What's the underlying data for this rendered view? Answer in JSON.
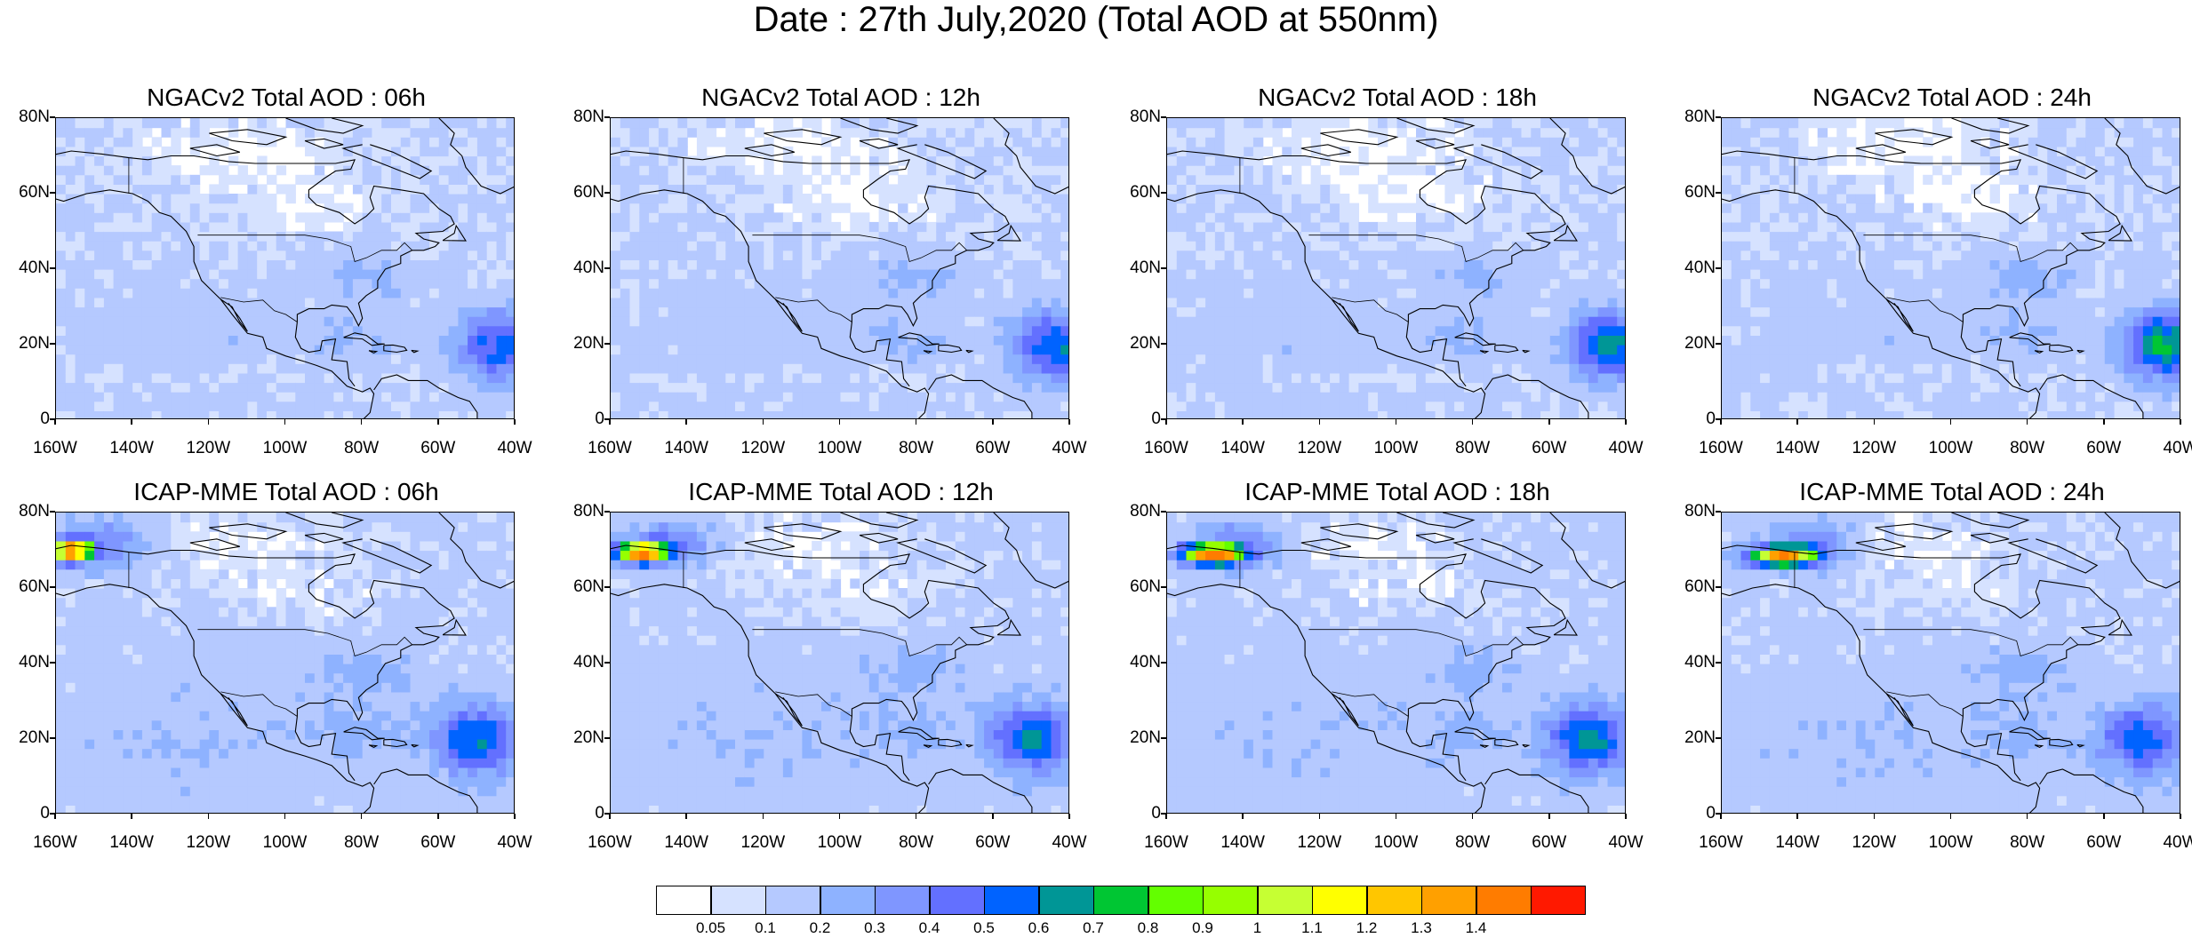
{
  "title": "Date : 27th July,2020 (Total AOD at 550nm)",
  "panels": [
    {
      "title": "NGACv2 Total AOD : 06h",
      "model": "NGACv2",
      "lead": "06h",
      "plume_intensity": 0.0,
      "dust_intensity": 0.45
    },
    {
      "title": "NGACv2 Total AOD : 12h",
      "model": "NGACv2",
      "lead": "12h",
      "plume_intensity": 0.0,
      "dust_intensity": 0.5
    },
    {
      "title": "NGACv2 Total AOD : 18h",
      "model": "NGACv2",
      "lead": "18h",
      "plume_intensity": 0.0,
      "dust_intensity": 0.55
    },
    {
      "title": "NGACv2 Total AOD : 24h",
      "model": "NGACv2",
      "lead": "24h",
      "plume_intensity": 0.0,
      "dust_intensity": 0.6
    },
    {
      "title": "ICAP-MME Total AOD : 06h",
      "model": "ICAP-MME",
      "lead": "06h",
      "plume_intensity": 1.4,
      "dust_intensity": 0.5
    },
    {
      "title": "ICAP-MME Total AOD : 12h",
      "model": "ICAP-MME",
      "lead": "12h",
      "plume_intensity": 1.35,
      "dust_intensity": 0.5
    },
    {
      "title": "ICAP-MME Total AOD : 18h",
      "model": "ICAP-MME",
      "lead": "18h",
      "plume_intensity": 1.4,
      "dust_intensity": 0.5
    },
    {
      "title": "ICAP-MME Total AOD : 24h",
      "model": "ICAP-MME",
      "lead": "24h",
      "plume_intensity": 1.2,
      "dust_intensity": 0.45
    }
  ],
  "axes": {
    "x_ticks": [
      "160W",
      "140W",
      "120W",
      "100W",
      "80W",
      "60W",
      "40W"
    ],
    "y_ticks": [
      "80N",
      "60N",
      "40N",
      "20N",
      "0"
    ],
    "lon_range": [
      -160,
      -40
    ],
    "lat_range": [
      0,
      80
    ]
  },
  "colorbar": {
    "labels": [
      "0.05",
      "0.1",
      "0.2",
      "0.3",
      "0.4",
      "0.5",
      "0.6",
      "0.7",
      "0.8",
      "0.9",
      "1",
      "1.1",
      "1.2",
      "1.3",
      "1.4"
    ],
    "colors": [
      "#ffffff",
      "#d6e2ff",
      "#b5c9ff",
      "#8eb2ff",
      "#7f96ff",
      "#6370ff",
      "#0063ff",
      "#009696",
      "#00c633",
      "#63ff00",
      "#96ff00",
      "#c6ff33",
      "#ffff00",
      "#ffc600",
      "#ffa000",
      "#ff7c00",
      "#ff1900"
    ]
  }
}
